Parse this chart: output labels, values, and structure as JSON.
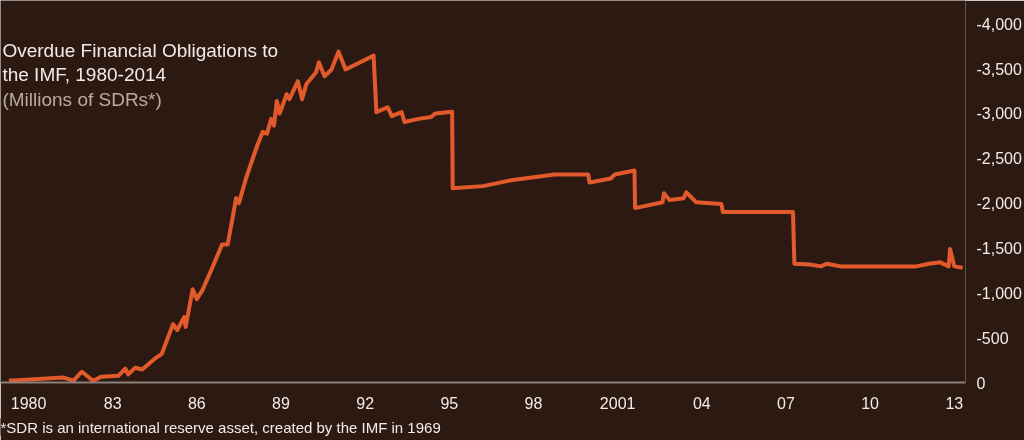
{
  "chart_data": {
    "type": "line",
    "title": "Overdue Financial Obligations to\nthe IMF, 1980-2014",
    "subtitle": "(Millions of SDRs*)",
    "annotations": [
      "*SDR is an international reserve asset, created by the IMF in 1969"
    ],
    "x": [
      1979.3,
      1981.25,
      1981.6,
      1981.9,
      1982.3,
      1982.6,
      1983.2,
      1983.45,
      1983.55,
      1983.8,
      1984.05,
      1984.5,
      1984.75,
      1985.15,
      1985.3,
      1985.55,
      1985.6,
      1985.85,
      1986.0,
      1986.2,
      1986.55,
      1986.9,
      1987.1,
      1987.4,
      1987.5,
      1987.75,
      1988.15,
      1988.35,
      1988.5,
      1988.65,
      1988.75,
      1988.85,
      1988.95,
      1989.2,
      1989.3,
      1989.6,
      1989.75,
      1989.9,
      1990.25,
      1990.35,
      1990.55,
      1990.8,
      1991.05,
      1991.3,
      1992.3,
      1992.4,
      1992.8,
      1992.95,
      1993.3,
      1993.4,
      1993.9,
      1994.35,
      1994.5,
      1995.1,
      1995.12,
      1996.2,
      1997.2,
      1998.75,
      1999.95,
      2000.0,
      2000.75,
      2000.9,
      2001.6,
      2001.62,
      2002.6,
      2002.65,
      2002.85,
      2003.35,
      2003.45,
      2003.8,
      2004.7,
      2004.75,
      2007.25,
      2007.3,
      2007.85,
      2008.25,
      2008.45,
      2008.95,
      2011.65,
      2012.1,
      2012.5,
      2012.8,
      2012.85,
      2013.0,
      2013.3
    ],
    "series": [
      {
        "color": "#e25a2c",
        "values": [
          -20,
          -55,
          -20,
          -120,
          -20,
          -65,
          -75,
          -155,
          -90,
          -165,
          -145,
          -265,
          -320,
          -650,
          -585,
          -730,
          -620,
          -1040,
          -930,
          -1030,
          -1280,
          -1540,
          -1540,
          -2055,
          -2000,
          -2275,
          -2640,
          -2795,
          -2775,
          -2940,
          -2865,
          -3140,
          -3000,
          -3215,
          -3160,
          -3360,
          -3160,
          -3325,
          -3460,
          -3570,
          -3415,
          -3490,
          -3690,
          -3490,
          -3645,
          -3015,
          -3070,
          -2970,
          -3015,
          -2905,
          -2940,
          -2960,
          -3000,
          -3020,
          -2165,
          -2190,
          -2255,
          -2320,
          -2320,
          -2230,
          -2275,
          -2320,
          -2365,
          -1945,
          -2010,
          -2110,
          -2035,
          -2055,
          -2120,
          -2010,
          -1990,
          -1900,
          -1900,
          -1325,
          -1315,
          -1295,
          -1325,
          -1295,
          -1295,
          -1325,
          -1340,
          -1295,
          -1490,
          -1295,
          -1280
        ]
      }
    ],
    "xlim": [
      1979.0,
      2013.4
    ],
    "ylim": [
      0,
      -4260
    ],
    "xticks": [
      1980,
      {
        "value": 1983,
        "label": "83"
      },
      {
        "value": 1986,
        "label": "86"
      },
      {
        "value": 1989,
        "label": "89"
      },
      {
        "value": 1992,
        "label": "92"
      },
      {
        "value": 1995,
        "label": "95"
      },
      {
        "value": 1998,
        "label": "98"
      },
      2001,
      {
        "value": 2004,
        "label": "04"
      },
      {
        "value": 2007,
        "label": "07"
      },
      {
        "value": 2010,
        "label": "10"
      },
      {
        "value": 2013,
        "label": "13"
      }
    ],
    "yticks": [
      0,
      -500,
      {
        "value": -1000,
        "label": "-1,000"
      },
      {
        "value": -1500,
        "label": "-1,500"
      },
      {
        "value": -2000,
        "label": "-2,000"
      },
      {
        "value": -2500,
        "label": "-2,500"
      },
      {
        "value": -3000,
        "label": "-3,000"
      },
      {
        "value": -3500,
        "label": "-3,500"
      },
      {
        "value": -4000,
        "label": "-4,000"
      }
    ],
    "grid": false,
    "line_style": "solid"
  }
}
